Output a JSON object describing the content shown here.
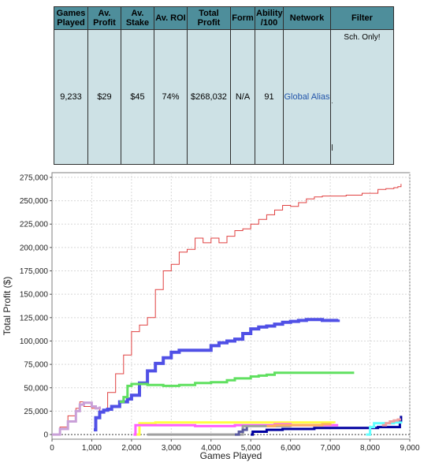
{
  "table": {
    "headers": [
      "Games Played",
      "Av. Profit",
      "Av. Stake",
      "Av. ROI",
      "Total Profit",
      "Form",
      "Ability /100",
      "Network",
      "Filter"
    ],
    "row": {
      "games_played": "9,233",
      "av_profit": "$29",
      "av_stake": "$45",
      "av_roi": "74%",
      "total_profit": "$268,032",
      "form": "N/A",
      "ability": "91",
      "network": "Global Alias",
      "filter": "Sch. Only!"
    }
  },
  "chart_data": {
    "type": "line",
    "xlabel": "Games Played",
    "ylabel": "Total Profit ($)",
    "xlim": [
      0,
      9000
    ],
    "ylim": [
      -5000,
      280000
    ],
    "xticks": [
      "0",
      "1,000",
      "2,000",
      "3,000",
      "4,000",
      "5,000",
      "6,000",
      "7,000",
      "8,000",
      "9,000"
    ],
    "yticks": [
      "0",
      "25,000",
      "50,000",
      "75,000",
      "100,000",
      "125,000",
      "150,000",
      "175,000",
      "200,000",
      "225,000",
      "250,000",
      "275,000"
    ],
    "grid": true,
    "series": [
      {
        "color": "#e04040",
        "width": 1,
        "x": [
          0,
          200,
          400,
          600,
          700,
          800,
          1000,
          1200,
          1400,
          1600,
          1800,
          2000,
          2200,
          2400,
          2600,
          2800,
          3000,
          3200,
          3400,
          3600,
          3800,
          4000,
          4200,
          4400,
          4600,
          4800,
          5000,
          5200,
          5400,
          5600,
          5800,
          6000,
          6200,
          6400,
          6600,
          6800,
          7000,
          7200,
          7400,
          7600,
          7800,
          8000,
          8200,
          8400,
          8600,
          8700,
          8780
        ],
        "y": [
          0,
          8000,
          20000,
          28000,
          35000,
          30000,
          28000,
          25000,
          45000,
          65000,
          85000,
          110000,
          117000,
          125000,
          155000,
          175000,
          182000,
          195000,
          198000,
          210000,
          205000,
          210000,
          205000,
          212000,
          218000,
          220000,
          225000,
          230000,
          235000,
          240000,
          245000,
          244000,
          248000,
          252000,
          254000,
          255000,
          255000,
          255000,
          256000,
          256000,
          258000,
          258000,
          262000,
          263000,
          264000,
          265000,
          268000
        ]
      },
      {
        "color": "#5050e6",
        "width": 4,
        "x": [
          1050,
          1100,
          1200,
          1300,
          1400,
          1500,
          1700,
          1900,
          2000,
          2200,
          2400,
          2600,
          2800,
          3000,
          3200,
          3400,
          3600,
          3800,
          4000,
          4200,
          4400,
          4600,
          4800,
          5000,
          5200,
          5400,
          5600,
          5800,
          6000,
          6200,
          6400,
          6600,
          6800,
          7000,
          7200
        ],
        "y": [
          5000,
          18000,
          24000,
          26000,
          27000,
          30000,
          35000,
          38000,
          42000,
          55000,
          68000,
          76000,
          82000,
          88000,
          90000,
          90000,
          90000,
          90000,
          95000,
          98000,
          100000,
          102000,
          108000,
          113000,
          115000,
          116000,
          118000,
          120000,
          121000,
          122000,
          123000,
          123000,
          122000,
          122000,
          123000
        ]
      },
      {
        "color": "#60e060",
        "width": 3,
        "x": [
          1700,
          1800,
          1900,
          2000,
          2400,
          2800,
          3200,
          3600,
          4000,
          4400,
          4600,
          4800,
          5000,
          5200,
          5400,
          5600,
          5800,
          6000,
          6400,
          6800,
          7200,
          7600
        ],
        "y": [
          35000,
          40000,
          52000,
          54000,
          53000,
          52000,
          53000,
          55000,
          56000,
          58000,
          60000,
          60000,
          62000,
          63000,
          64000,
          66000,
          66000,
          66000,
          66000,
          66000,
          66000,
          66000
        ]
      },
      {
        "color": "#c9a0d8",
        "width": 3,
        "x": [
          0,
          200,
          400,
          600,
          700,
          800,
          1000,
          1100,
          1200
        ],
        "y": [
          0,
          6000,
          14000,
          25000,
          32000,
          34000,
          30000,
          28000,
          30000
        ]
      },
      {
        "color": "#ffff40",
        "width": 3,
        "x": [
          2100,
          2200,
          2600,
          3000,
          3600,
          4200,
          4800,
          5400,
          6000,
          6600,
          7000,
          7100
        ],
        "y": [
          0,
          12000,
          13000,
          13000,
          13000,
          13000,
          13000,
          13000,
          13000,
          13000,
          13000,
          12000
        ]
      },
      {
        "color": "#ff60ff",
        "width": 3,
        "x": [
          2050,
          2100,
          2400,
          3000,
          3600,
          4000,
          4400,
          4600,
          5000,
          5400,
          5600,
          6000,
          6800,
          7200
        ],
        "y": [
          0,
          10000,
          10000,
          10000,
          9000,
          9000,
          9000,
          10000,
          10000,
          10000,
          11000,
          10000,
          10000,
          10000
        ]
      },
      {
        "color": "#a0a0a0",
        "width": 3,
        "x": [
          2400,
          2600,
          3000,
          3400,
          4000,
          4400,
          4600,
          4800,
          5000,
          5400,
          5600,
          6000
        ],
        "y": [
          0,
          0,
          0,
          0,
          0,
          0,
          0,
          9000,
          9000,
          9000,
          9000,
          8000
        ]
      },
      {
        "color": "#5a5aa0",
        "width": 3,
        "x": [
          4600,
          4700,
          4800,
          4900
        ],
        "y": [
          0,
          3000,
          5000,
          8000
        ]
      },
      {
        "color": "#ffb060",
        "width": 3,
        "x": [
          5400,
          5600,
          6000,
          6400,
          6800,
          7000
        ],
        "y": [
          9000,
          10000,
          10000,
          10000,
          11000,
          12000
        ]
      },
      {
        "color": "#0000a0",
        "width": 3,
        "x": [
          5000,
          5050,
          5400,
          5800,
          6200,
          6600,
          7000,
          7400,
          7800,
          8200,
          8600,
          8700,
          8750,
          8780
        ],
        "y": [
          0,
          3000,
          5000,
          6000,
          6000,
          7000,
          7000,
          7000,
          7000,
          8000,
          8000,
          8000,
          14000,
          20000
        ]
      },
      {
        "color": "#60ffff",
        "width": 3,
        "x": [
          7900,
          8000,
          8100,
          8200,
          8400,
          8600,
          8780
        ],
        "y": [
          0,
          8000,
          12000,
          12000,
          12000,
          13000,
          14000
        ]
      },
      {
        "color": "#f0a0a0",
        "width": 3,
        "x": [
          8300,
          8400,
          8500,
          8600,
          8700,
          8780
        ],
        "y": [
          10000,
          12000,
          14000,
          15000,
          16000,
          16000
        ]
      }
    ]
  }
}
